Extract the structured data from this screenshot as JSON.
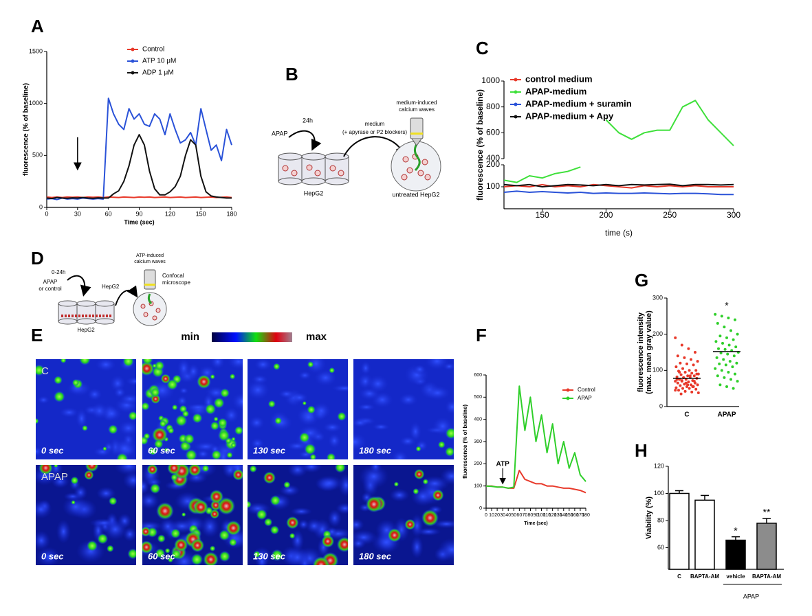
{
  "panel_labels": [
    "A",
    "B",
    "C",
    "D",
    "E",
    "F",
    "G",
    "H"
  ],
  "chart_data": [
    {
      "type": "line",
      "xlabel": "Time (sec)",
      "ylabel": "fluorescence (% of baseline)",
      "x": [
        0,
        5,
        10,
        15,
        20,
        25,
        30,
        35,
        40,
        45,
        50,
        55,
        60,
        65,
        70,
        75,
        80,
        85,
        90,
        95,
        100,
        105,
        110,
        115,
        120,
        125,
        130,
        135,
        140,
        145,
        150,
        155,
        160,
        165,
        170,
        175,
        180
      ],
      "xlim": [
        0,
        180
      ],
      "xticks": [
        0,
        30,
        60,
        90,
        120,
        150,
        180
      ],
      "ylim": [
        0,
        1500
      ],
      "yticks": [
        0,
        500,
        1000,
        1500
      ],
      "arrow_x": 30,
      "series": [
        {
          "name": "Control",
          "color": "#e8392a",
          "values": [
            100,
            95,
            100,
            95,
            100,
            98,
            100,
            95,
            100,
            98,
            100,
            95,
            100,
            98,
            95,
            100,
            98,
            95,
            100,
            98,
            100,
            95,
            98,
            100,
            95,
            98,
            100,
            95,
            98,
            100,
            95,
            98,
            100,
            95,
            98,
            100,
            95
          ]
        },
        {
          "name": "ATP 10 μM",
          "color": "#2a52d8",
          "values": [
            80,
            85,
            75,
            90,
            80,
            85,
            80,
            90,
            85,
            80,
            85,
            80,
            1050,
            900,
            800,
            750,
            950,
            850,
            900,
            800,
            780,
            900,
            850,
            700,
            900,
            750,
            620,
            650,
            720,
            600,
            950,
            750,
            550,
            600,
            450,
            750,
            600
          ]
        },
        {
          "name": "ADP 1 μM",
          "color": "#111111",
          "values": [
            90,
            85,
            95,
            90,
            88,
            92,
            90,
            95,
            90,
            88,
            92,
            90,
            90,
            130,
            160,
            250,
            400,
            600,
            700,
            600,
            350,
            180,
            120,
            120,
            150,
            200,
            300,
            500,
            650,
            600,
            300,
            150,
            110,
            100,
            95,
            90,
            90
          ]
        }
      ]
    },
    {
      "type": "line",
      "xlabel": "time (s)",
      "ylabel": "fluorescence (% of baseline)",
      "x": [
        120,
        130,
        140,
        150,
        160,
        170,
        180,
        190,
        200,
        210,
        220,
        230,
        240,
        250,
        260,
        270,
        280,
        290,
        300
      ],
      "xlim": [
        120,
        300
      ],
      "xticks": [
        150,
        200,
        250,
        300
      ],
      "ylim": [
        0,
        1000
      ],
      "yticks": [
        100,
        200,
        400,
        600,
        800,
        1000
      ],
      "y_break": [
        200,
        400
      ],
      "series": [
        {
          "name": "control medium",
          "color": "#e8392a",
          "values": [
            100,
            105,
            100,
            110,
            100,
            105,
            100,
            110,
            105,
            100,
            95,
            105,
            100,
            105,
            100,
            105,
            100,
            100,
            100
          ]
        },
        {
          "name": "APAP-medium",
          "color": "#3ee03a",
          "values": [
            130,
            120,
            150,
            140,
            160,
            170,
            190,
            null,
            700,
            600,
            550,
            600,
            620,
            620,
            800,
            850,
            700,
            600,
            500
          ]
        },
        {
          "name": "APAP-medium + suramin",
          "color": "#2a52d8",
          "values": [
            75,
            80,
            75,
            78,
            75,
            72,
            75,
            70,
            72,
            70,
            70,
            72,
            70,
            68,
            70,
            70,
            68,
            65,
            65
          ]
        },
        {
          "name": "APAP-medium + Apy",
          "color": "#111111",
          "values": [
            110,
            105,
            110,
            100,
            105,
            110,
            108,
            105,
            110,
            105,
            110,
            108,
            110,
            112,
            105,
            110,
            110,
            108,
            110
          ]
        }
      ]
    },
    {
      "type": "line",
      "xlabel": "Time (sec)",
      "ylabel": "fluorescence (% of baseline)",
      "x": [
        0,
        10,
        20,
        30,
        40,
        50,
        60,
        70,
        80,
        90,
        100,
        110,
        120,
        130,
        140,
        150,
        160,
        170,
        180
      ],
      "xlim": [
        0,
        180
      ],
      "xticks": [
        0,
        10,
        20,
        30,
        40,
        50,
        60,
        70,
        80,
        90,
        100,
        110,
        120,
        130,
        140,
        150,
        160,
        170,
        180
      ],
      "ylim": [
        0,
        600
      ],
      "yticks": [
        0,
        100,
        200,
        300,
        400,
        500,
        600
      ],
      "annotation": {
        "text": "ATP",
        "x": 30
      },
      "series": [
        {
          "name": "Control",
          "color": "#e8392a",
          "values": [
            100,
            100,
            95,
            95,
            90,
            90,
            170,
            130,
            120,
            110,
            110,
            100,
            100,
            95,
            90,
            90,
            85,
            80,
            70
          ]
        },
        {
          "name": "APAP",
          "color": "#2fcf2a",
          "values": [
            100,
            98,
            95,
            95,
            90,
            95,
            550,
            350,
            500,
            300,
            420,
            250,
            380,
            200,
            300,
            180,
            250,
            150,
            120
          ]
        }
      ]
    },
    {
      "type": "strip",
      "ylabel": [
        "fluorescence intensity",
        "(max. mean gray value)"
      ],
      "categories": [
        "C",
        "APAP"
      ],
      "ylim": [
        0,
        300
      ],
      "yticks": [
        0,
        100,
        200,
        300
      ],
      "significance": [
        null,
        "*"
      ],
      "groups": [
        {
          "color": "#e8392a",
          "mean": 78,
          "values": [
            190,
            170,
            160,
            150,
            140,
            135,
            130,
            125,
            120,
            118,
            115,
            110,
            105,
            100,
            100,
            98,
            95,
            92,
            90,
            88,
            85,
            85,
            82,
            80,
            80,
            78,
            75,
            75,
            72,
            70,
            70,
            68,
            65,
            65,
            62,
            60,
            60,
            58,
            55,
            55,
            52,
            50,
            50,
            48,
            45,
            42,
            40,
            38,
            35,
            60,
            70,
            75,
            80,
            85,
            90,
            95,
            65,
            55,
            45,
            72
          ]
        },
        {
          "color": "#2fcf2a",
          "mean": 152,
          "values": [
            255,
            250,
            245,
            240,
            230,
            220,
            210,
            200,
            195,
            190,
            185,
            180,
            175,
            170,
            165,
            160,
            158,
            155,
            150,
            148,
            145,
            140,
            135,
            130,
            125,
            120,
            118,
            115,
            110,
            105,
            100,
            95,
            90,
            85,
            80,
            75,
            70,
            60,
            55,
            50
          ]
        }
      ]
    },
    {
      "type": "bar",
      "ylabel": "Viability (%)",
      "categories": [
        "C",
        "BAPTA-AM",
        "vehicle",
        "BAPTA-AM"
      ],
      "values": [
        100,
        95,
        65.5,
        78
      ],
      "errors": [
        2,
        3.5,
        2.5,
        3.5
      ],
      "colors": [
        "#ffffff",
        "#ffffff",
        "#000000",
        "#8c8c8c"
      ],
      "significance": [
        null,
        null,
        "*",
        "**"
      ],
      "group_label": "APAP",
      "ylim": [
        44,
        120
      ],
      "yticks": [
        60,
        80,
        100,
        120
      ]
    }
  ],
  "diagram_b": {
    "drug": "APAP",
    "time": "24h",
    "medium": "medium",
    "medium_note": "(+ apyrase or P2 blockers)",
    "waves": [
      "medium-induced",
      "calcium waves"
    ],
    "cells": "HepG2",
    "target": "untreated HepG2"
  },
  "diagram_d": {
    "time": "0-24h",
    "drug": [
      "APAP",
      "or control"
    ],
    "transfer": "HepG2",
    "waves": [
      "ATP-induced",
      "calcium waves"
    ],
    "microscope": [
      "Confocal",
      "microscope"
    ],
    "cells": "HepG2"
  },
  "panel_e": {
    "colorbar_labels": [
      "min",
      "max"
    ],
    "rows": [
      "C",
      "APAP"
    ],
    "times": [
      "0 sec",
      "60 sec",
      "130 sec",
      "180 sec"
    ]
  }
}
